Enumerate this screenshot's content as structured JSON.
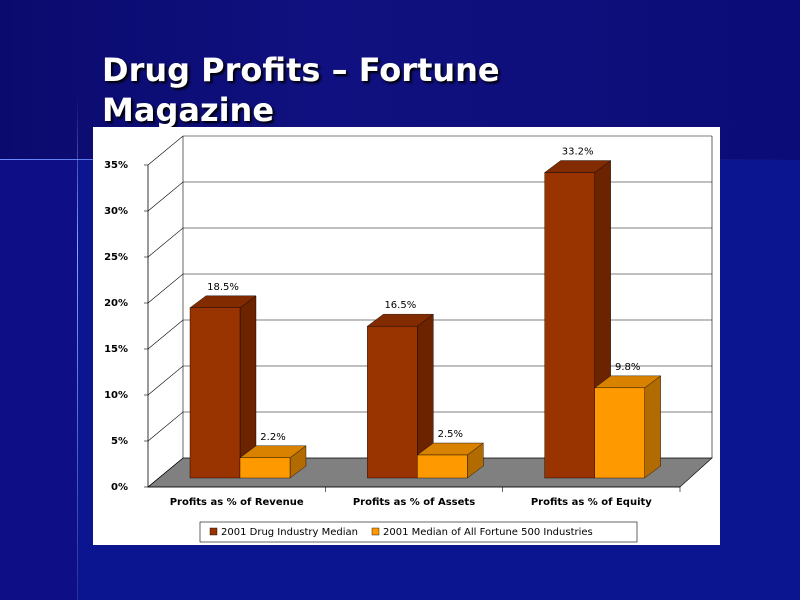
{
  "chart_data": {
    "type": "bar3d",
    "title": "Drug Profits – Fortune Magazine",
    "categories": [
      "Profits as % of Revenue",
      "Profits as % of Assets",
      "Profits as % of Equity"
    ],
    "series": [
      {
        "name": "2001 Drug Industry Median",
        "color": "#993300",
        "values": [
          18.5,
          16.5,
          33.2
        ],
        "value_labels": [
          "18.5%",
          "16.5%",
          "33.2%"
        ]
      },
      {
        "name": "2001 Median of All Fortune 500 Industries",
        "color": "#ff9900",
        "values": [
          2.2,
          2.5,
          9.8
        ],
        "value_labels": [
          "2.2%",
          "2.5%",
          "9.8%"
        ]
      }
    ],
    "ylim": [
      0,
      35
    ],
    "yticks": [
      {
        "value": 0,
        "label": "0%"
      },
      {
        "value": 5,
        "label": "5%"
      },
      {
        "value": 10,
        "label": "10%"
      },
      {
        "value": 15,
        "label": "15%"
      },
      {
        "value": 20,
        "label": "20%"
      },
      {
        "value": 25,
        "label": "25%"
      },
      {
        "value": 30,
        "label": "30%"
      },
      {
        "value": 35,
        "label": "35%"
      }
    ],
    "grid": true,
    "legend": "bottom"
  }
}
